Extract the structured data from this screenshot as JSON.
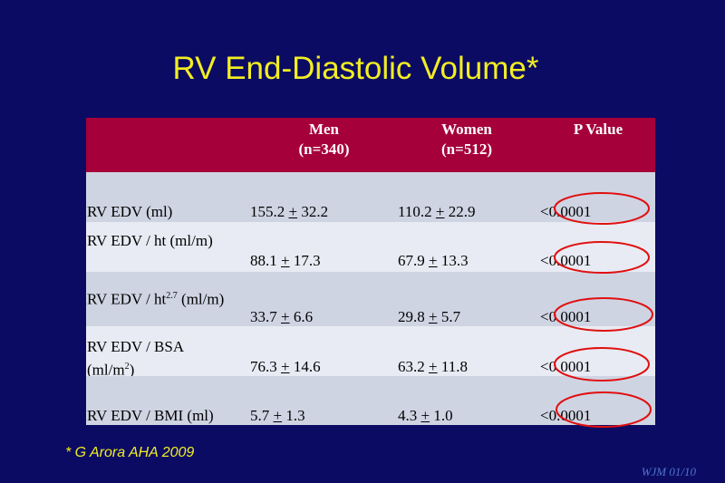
{
  "slide": {
    "title": "RV End-Diastolic Volume*",
    "footnote": "* G Arora AHA 2009",
    "corner_tag": "WJM 01/10"
  },
  "table": {
    "headers": {
      "men_line1": "Men",
      "men_line2": "(n=340)",
      "women_line1": "Women",
      "women_line2": "(n=512)",
      "p_value": "P Value"
    },
    "rows": [
      {
        "label_line1": "RV EDV (ml)",
        "men_mean": "155.2",
        "men_sd": "32.2",
        "women_mean": "110.2",
        "women_sd": "22.9",
        "pm": "+",
        "p_prefix": "<",
        "p": "0.0001"
      },
      {
        "label_line1": "RV EDV / ht  (ml/m)",
        "men_mean": "88.1",
        "men_sd": "17.3",
        "women_mean": "67.9",
        "women_sd": "13.3",
        "pm": "+",
        "p_prefix": "<",
        "p": "0.0001"
      },
      {
        "label_line1": "RV EDV / ht",
        "label_sup": "2.7",
        "label_tail": " (ml/m)",
        "men_mean": "33.7",
        "men_sd": "6.6",
        "women_mean": "29.8",
        "women_sd": "5.7",
        "pm": "+",
        "p_prefix": "<",
        "p": "0.0001"
      },
      {
        "label_line1": "RV EDV / BSA",
        "label_line2": "(ml/m",
        "label_line2_sup": "2",
        "label_line2_tail": ")",
        "men_mean": "76.3",
        "men_sd": "14.6",
        "women_mean": "63.2",
        "women_sd": "11.8",
        "pm": "+",
        "p_prefix": "<",
        "p": "0.0001"
      },
      {
        "label_line1": "RV EDV / BMI (ml)",
        "men_mean": "5.7",
        "men_sd": "1.3",
        "women_mean": "4.3",
        "women_sd": "1.0",
        "pm": "+",
        "p_prefix": "<",
        "p": "0.0001"
      }
    ]
  },
  "colors": {
    "background": "#0b0b64",
    "title": "#f2ee22",
    "header": "#a5003a",
    "row_dark": "#cfd4e3",
    "row_light": "#e8ebf3",
    "circle": "#e01010"
  }
}
